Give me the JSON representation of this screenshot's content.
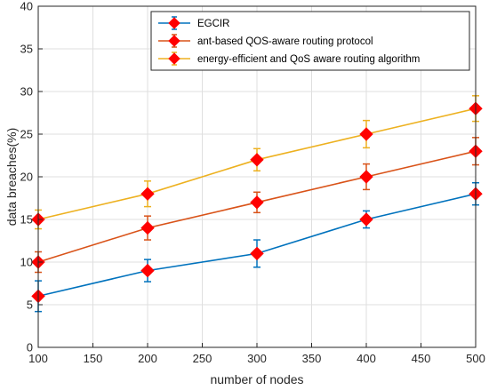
{
  "chart_data": {
    "type": "line",
    "title": "",
    "xlabel": "number of nodes",
    "ylabel": "data breaches(%)",
    "xlim": [
      100,
      500
    ],
    "ylim": [
      0,
      40
    ],
    "xticks": [
      100,
      150,
      200,
      250,
      300,
      350,
      400,
      450,
      500
    ],
    "yticks": [
      0,
      5,
      10,
      15,
      20,
      25,
      30,
      35,
      40
    ],
    "grid": true,
    "legend_position": "top-right",
    "x": [
      100,
      200,
      300,
      400,
      500
    ],
    "series": [
      {
        "name": "EGCIR",
        "color": "#0072BD",
        "values": [
          6,
          9,
          11,
          15,
          18
        ],
        "errors": [
          1.8,
          1.3,
          1.6,
          1.0,
          1.3
        ]
      },
      {
        "name": "ant-based QOS-aware routing protocol",
        "color": "#D95319",
        "values": [
          10,
          14,
          17,
          20,
          23
        ],
        "errors": [
          1.2,
          1.4,
          1.2,
          1.5,
          1.6
        ]
      },
      {
        "name": "energy-efficient and QoS aware routing algorithm",
        "color": "#EDB120",
        "values": [
          15,
          18,
          22,
          25,
          28
        ],
        "errors": [
          1.1,
          1.5,
          1.3,
          1.6,
          1.5
        ]
      }
    ],
    "marker": {
      "shape": "diamond",
      "color": "#FF0000"
    }
  }
}
